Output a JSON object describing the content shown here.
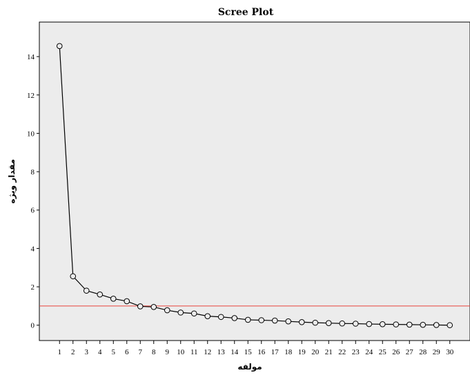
{
  "chart_data": {
    "type": "line",
    "title": "Scree Plot",
    "xlabel": "مولفه",
    "ylabel": "مقدار ویژه",
    "x": [
      1,
      2,
      3,
      4,
      5,
      6,
      7,
      8,
      9,
      10,
      11,
      12,
      13,
      14,
      15,
      16,
      17,
      18,
      19,
      20,
      21,
      22,
      23,
      24,
      25,
      26,
      27,
      28,
      29,
      30
    ],
    "values": [
      14.55,
      2.55,
      1.8,
      1.6,
      1.38,
      1.25,
      0.98,
      0.95,
      0.78,
      0.66,
      0.61,
      0.47,
      0.43,
      0.37,
      0.28,
      0.26,
      0.24,
      0.2,
      0.16,
      0.13,
      0.11,
      0.09,
      0.08,
      0.06,
      0.05,
      0.04,
      0.03,
      0.02,
      0.01,
      0.0
    ],
    "xticks": [
      "1",
      "2",
      "3",
      "4",
      "5",
      "6",
      "7",
      "8",
      "9",
      "10",
      "11",
      "12",
      "13",
      "14",
      "15",
      "16",
      "17",
      "18",
      "19",
      "20",
      "21",
      "22",
      "23",
      "24",
      "25",
      "26",
      "27",
      "28",
      "29",
      "30"
    ],
    "yticks": [
      "0",
      "2",
      "4",
      "6",
      "8",
      "10",
      "12",
      "14"
    ],
    "ylim": [
      -0.8,
      15.8
    ],
    "xlim": [
      -0.5,
      31.5
    ],
    "reference_line": {
      "y": 1.0,
      "color": "#e8413a"
    },
    "colors": {
      "plot_background": "#ececec",
      "line": "#000000",
      "marker_edge": "#000000",
      "marker_fill": "#ececec"
    },
    "grid": false,
    "legend": false
  }
}
